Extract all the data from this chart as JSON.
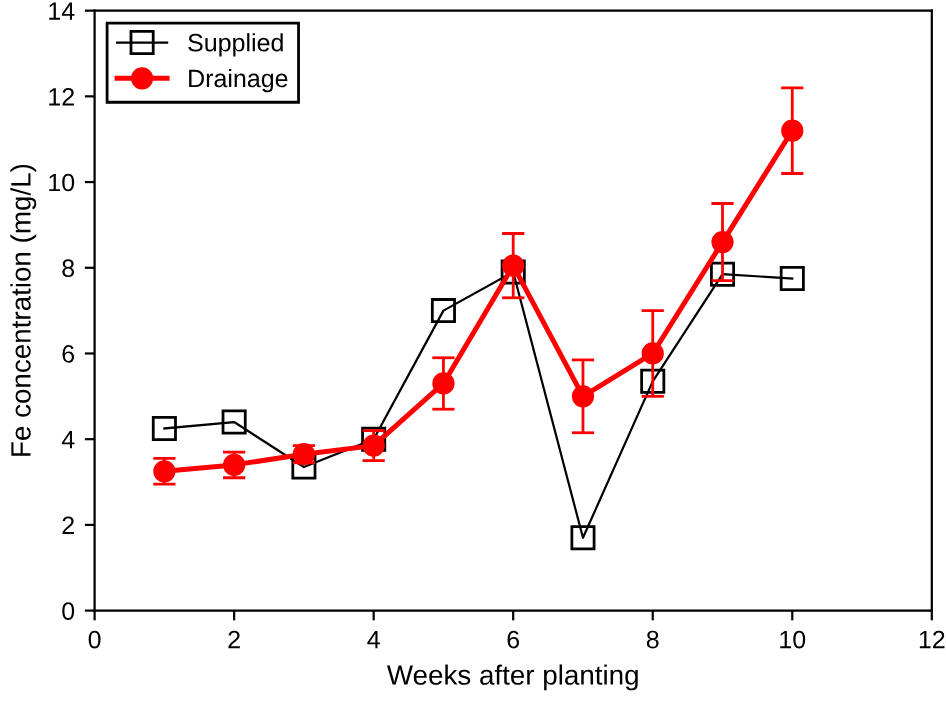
{
  "chart_data": {
    "type": "line",
    "xlabel": "Weeks after planting",
    "ylabel": "Fe concentration (mg/L)",
    "x": [
      1,
      2,
      3,
      4,
      5,
      6,
      7,
      8,
      9,
      10
    ],
    "series": [
      {
        "name": "Supplied",
        "color": "#000000",
        "marker": "square",
        "values": [
          4.25,
          4.4,
          3.35,
          4.0,
          7.0,
          7.9,
          1.7,
          5.35,
          7.85,
          7.75
        ]
      },
      {
        "name": "Drainage",
        "color": "#ff0000",
        "marker": "circle",
        "values": [
          3.25,
          3.4,
          3.65,
          3.85,
          5.3,
          8.05,
          5.0,
          6.0,
          8.6,
          11.2
        ],
        "errors": [
          0.3,
          0.3,
          0.2,
          0.35,
          0.6,
          0.75,
          0.85,
          1.0,
          0.9,
          1.0
        ]
      }
    ],
    "xlim": [
      0,
      12
    ],
    "xticks": [
      0,
      2,
      4,
      6,
      8,
      10,
      12
    ],
    "ylim": [
      0,
      14
    ],
    "yticks": [
      0,
      2,
      4,
      6,
      8,
      10,
      12,
      14
    ],
    "grid": false,
    "legend": "top left",
    "line_style": "solid"
  }
}
